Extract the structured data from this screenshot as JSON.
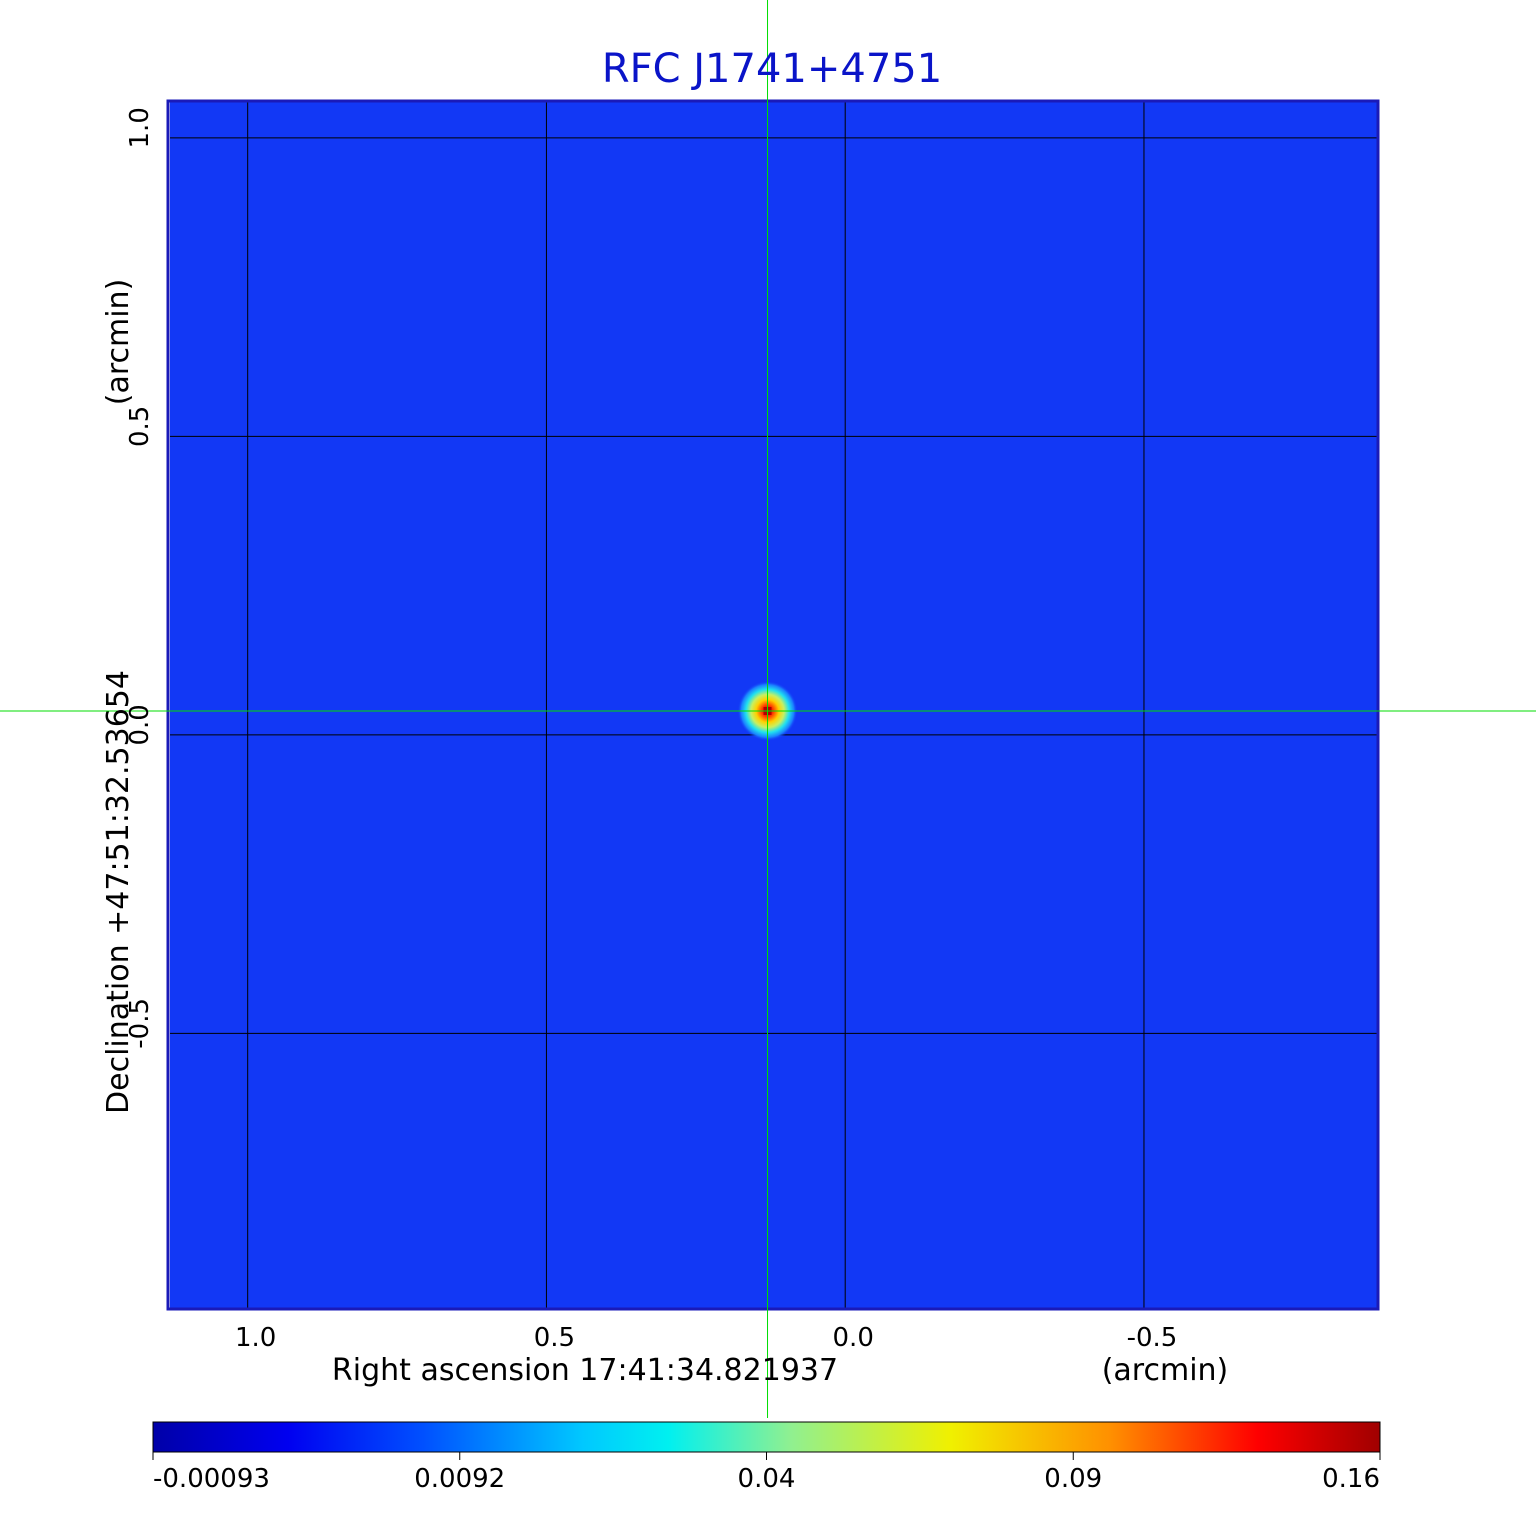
{
  "chart_data": {
    "type": "heatmap",
    "title": "RFC J1741+4751",
    "xlabel": "Right ascension  17:41:34.821937",
    "xunit": "(arcmin)",
    "ylabel": "Declination  +47:51:32.53654",
    "yunit": "(arcmin)",
    "x_axis_reversed": true,
    "xlim": [
      1.13,
      -0.89
    ],
    "ylim": [
      -0.96,
      1.06
    ],
    "x_ticks": [
      {
        "value": 1.0,
        "label": "1.0"
      },
      {
        "value": 0.5,
        "label": "0.5"
      },
      {
        "value": 0.0,
        "label": "0.0"
      },
      {
        "value": -0.5,
        "label": "-0.5"
      }
    ],
    "y_ticks": [
      {
        "value": 1.0,
        "label": "1.0"
      },
      {
        "value": 0.5,
        "label": "0.5"
      },
      {
        "value": 0.0,
        "label": "0.0"
      },
      {
        "value": -0.5,
        "label": "-0.5"
      }
    ],
    "grid": true,
    "source_peak": {
      "x": 0.13,
      "y": 0.04,
      "value": 0.16
    },
    "crosshair": {
      "x": 0.13,
      "y": 0.04,
      "color": "#00dd00"
    },
    "background_value": 0.0,
    "colorbar": {
      "colormap": "jet",
      "min": -0.00093,
      "max": 0.16,
      "ticks": [
        {
          "value": -0.00093,
          "label": "-0.00093"
        },
        {
          "value": 0.0092,
          "label": "0.0092"
        },
        {
          "value": 0.04,
          "label": "0.04"
        },
        {
          "value": 0.09,
          "label": "0.09"
        },
        {
          "value": 0.16,
          "label": "0.16"
        }
      ]
    },
    "colors": {
      "title": "#0a14c8",
      "frame": "#1a1ab8",
      "background": "#1238f5",
      "grid": "#000000",
      "crosshair": "#00dd00"
    }
  }
}
